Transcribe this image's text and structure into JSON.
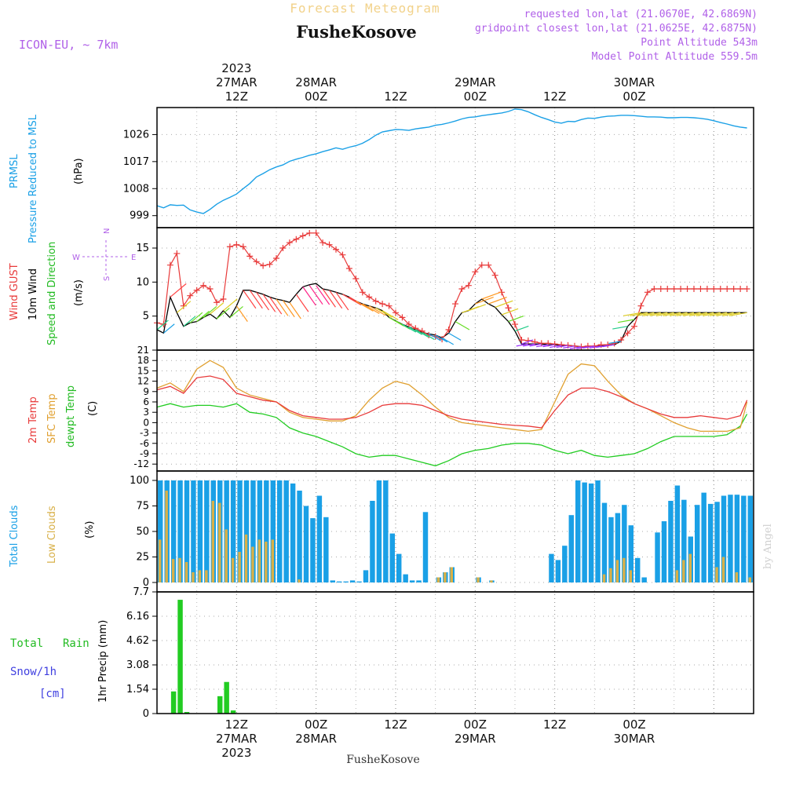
{
  "header": {
    "title": "Forecast Meteogram",
    "location": "FusheKosove",
    "model": "ICON-EU, ~ 7km",
    "requested": "requested lon,lat (21.0670E, 42.6869N)",
    "gridpoint": "gridpoint closest lon,lat (21.0625E, 42.6875N)",
    "altitude": "Point Altitude 543m",
    "model_altitude": "Model Point Altitude 559.5m",
    "footer_location": "FusheKosove",
    "credit": "by Angel"
  },
  "time_axis": {
    "top": [
      {
        "h": 12,
        "lines": [
          "2023",
          "27MAR",
          "12Z"
        ]
      },
      {
        "h": 24,
        "lines": [
          "28MAR",
          "00Z"
        ]
      },
      {
        "h": 36,
        "lines": [
          "12Z"
        ]
      },
      {
        "h": 48,
        "lines": [
          "29MAR",
          "00Z"
        ]
      },
      {
        "h": 60,
        "lines": [
          "12Z"
        ]
      },
      {
        "h": 72,
        "lines": [
          "30MAR",
          "00Z"
        ]
      }
    ],
    "bottom": [
      {
        "h": 12,
        "lines": [
          "12Z",
          "27MAR",
          "2023"
        ]
      },
      {
        "h": 24,
        "lines": [
          "00Z",
          "28MAR"
        ]
      },
      {
        "h": 36,
        "lines": [
          "12Z"
        ]
      },
      {
        "h": 48,
        "lines": [
          "00Z",
          "29MAR"
        ]
      },
      {
        "h": 60,
        "lines": [
          "12Z"
        ]
      },
      {
        "h": 72,
        "lines": [
          "00Z",
          "30MAR"
        ]
      }
    ]
  },
  "panels": {
    "pressure": {
      "labels": [
        "PRMSL",
        "Pressure Reduced to MSL",
        "(hPa)"
      ],
      "ticks": [
        "999",
        "1008",
        "1017",
        "1026"
      ],
      "line_color": "#1aa0e6"
    },
    "wind": {
      "labels": [
        "Wind GUST",
        "10m Wind",
        "Speed and Direction",
        "(m/s)"
      ],
      "compass": {
        "n": "N",
        "s": "S",
        "w": "W",
        "e": "E"
      },
      "ticks": [
        "5",
        "10",
        "15"
      ],
      "gust_color": "#e83a3a",
      "wind_color": "#000000"
    },
    "temp": {
      "labels": [
        "2m Temp",
        "SFC Temp",
        "dewpt Temp",
        "(C)"
      ],
      "ticks": [
        "-12",
        "-9",
        "-6",
        "-3",
        "0",
        "3",
        "6",
        "9",
        "12",
        "15",
        "18",
        "21"
      ],
      "t2m_color": "#e83a3a",
      "sfc_color": "#e0a030",
      "dew_color": "#22cc22"
    },
    "clouds": {
      "labels": [
        "Total Clouds",
        "Low Clouds",
        "(%)"
      ],
      "ticks": [
        "0",
        "25",
        "50",
        "75",
        "100"
      ],
      "total_color": "#1aa0e6",
      "low_color": "#d8b048"
    },
    "precip": {
      "labels": [
        "Total",
        "Rain",
        "Snow/1h",
        "[cm]",
        "1hr Precip (mm)"
      ],
      "ticks": [
        "0",
        "1.54",
        "3.08",
        "4.62",
        "6.16",
        "7.7"
      ],
      "rain_color": "#22cc22"
    }
  },
  "chart_data": {
    "type": "line",
    "x_units": "hours since 2023-03-27 00Z",
    "x_range": [
      0,
      90
    ],
    "pressure": {
      "ylim": [
        995,
        1035
      ],
      "x": [
        0,
        1,
        2,
        3,
        4,
        5,
        6,
        7,
        8,
        9,
        10,
        11,
        12,
        13,
        14,
        15,
        16,
        17,
        18,
        19,
        20,
        21,
        22,
        23,
        24,
        25,
        26,
        27,
        28,
        29,
        30,
        31,
        32,
        33,
        34,
        35,
        36,
        37,
        38,
        39,
        40,
        41,
        42,
        43,
        44,
        45,
        46,
        47,
        48,
        49,
        50,
        51,
        52,
        53,
        54,
        55,
        56,
        57,
        58,
        59,
        60,
        61,
        62,
        63,
        64,
        65,
        66,
        67,
        68,
        69,
        70,
        71,
        72,
        73,
        74,
        75,
        76,
        77,
        78,
        79,
        80,
        81,
        82,
        83,
        84,
        85,
        86,
        87,
        88,
        89
      ],
      "values": [
        1002.3,
        1001.6,
        1002.6,
        1002.4,
        1002.5,
        1000.9,
        1000.2,
        999.7,
        1001.1,
        1002.8,
        1004.1,
        1005.1,
        1006.2,
        1008.0,
        1009.7,
        1011.9,
        1013.0,
        1014.3,
        1015.2,
        1015.9,
        1017.1,
        1017.8,
        1018.4,
        1019.1,
        1019.6,
        1020.3,
        1020.9,
        1021.6,
        1021.1,
        1021.8,
        1022.3,
        1023.1,
        1024.3,
        1025.8,
        1026.9,
        1027.3,
        1027.7,
        1027.6,
        1027.4,
        1027.9,
        1028.2,
        1028.5,
        1029.1,
        1029.4,
        1029.9,
        1030.5,
        1031.2,
        1031.7,
        1031.9,
        1032.3,
        1032.6,
        1032.9,
        1033.2,
        1033.7,
        1034.5,
        1034.3,
        1033.6,
        1032.6,
        1031.7,
        1031.0,
        1030.2,
        1029.8,
        1030.4,
        1030.3,
        1031.0,
        1031.5,
        1031.4,
        1031.8,
        1032.1,
        1032.2,
        1032.4,
        1032.4,
        1032.3,
        1032.1,
        1031.9,
        1031.9,
        1031.8,
        1031.6,
        1031.6,
        1031.7,
        1031.7,
        1031.6,
        1031.4,
        1031.1,
        1030.6,
        1030.0,
        1029.5,
        1028.9,
        1028.5,
        1028.2
      ]
    },
    "wind": {
      "ylim": [
        0,
        18
      ],
      "x": [
        0,
        1,
        2,
        3,
        4,
        5,
        6,
        7,
        8,
        9,
        10,
        11,
        12,
        13,
        14,
        15,
        16,
        17,
        18,
        19,
        20,
        21,
        22,
        23,
        24,
        25,
        26,
        27,
        28,
        29,
        30,
        31,
        32,
        33,
        34,
        35,
        36,
        37,
        38,
        39,
        40,
        41,
        42,
        43,
        44,
        45,
        46,
        47,
        48,
        49,
        50,
        51,
        52,
        53,
        54,
        55,
        56,
        57,
        58,
        59,
        60,
        61,
        62,
        63,
        64,
        65,
        66,
        67,
        68,
        69,
        70,
        71,
        72,
        73,
        74,
        75,
        76,
        77,
        78,
        79,
        80,
        81,
        82,
        83,
        84,
        85,
        86,
        87,
        88,
        89
      ],
      "gust": [
        4.0,
        3.8,
        12.5,
        14.2,
        6.5,
        8.0,
        8.8,
        9.5,
        9.0,
        7.0,
        7.5,
        15.2,
        15.5,
        15.2,
        13.8,
        13.0,
        12.4,
        12.6,
        13.5,
        15.0,
        15.8,
        16.3,
        16.8,
        17.2,
        17.2,
        15.8,
        15.5,
        14.8,
        14.0,
        12.0,
        10.5,
        8.5,
        7.8,
        7.2,
        6.8,
        6.5,
        5.5,
        4.8,
        3.8,
        3.2,
        2.8,
        2.2,
        2.0,
        1.6,
        3.0,
        6.8,
        9.0,
        9.5,
        11.5,
        12.5,
        12.5,
        11.0,
        8.5,
        6.2,
        3.8,
        1.5,
        1.4,
        1.2,
        1.0,
        1.0,
        0.9,
        0.8,
        0.7,
        0.6,
        0.5,
        0.6,
        0.6,
        0.8,
        0.8,
        1.0,
        1.5,
        2.5,
        3.5,
        6.5,
        8.5,
        9.0,
        9.0,
        9.0,
        9.0,
        9.0,
        9.0,
        9.0,
        9.0,
        9.0,
        9.0,
        9.0,
        9.0,
        9.0,
        9.0,
        9.0
      ],
      "wind": [
        3.0,
        2.5,
        7.8,
        5.5,
        3.5,
        4.0,
        4.2,
        4.8,
        5.3,
        4.6,
        5.8,
        4.8,
        6.5,
        8.8,
        8.8,
        8.5,
        8.2,
        7.8,
        7.5,
        7.3,
        7.0,
        8.2,
        9.3,
        9.6,
        9.8,
        9.0,
        8.8,
        8.5,
        8.2,
        7.8,
        7.2,
        6.8,
        6.5,
        6.2,
        5.8,
        4.8,
        4.3,
        3.8,
        3.4,
        3.0,
        2.6,
        2.4,
        2.2,
        1.8,
        2.5,
        4.2,
        5.5,
        5.8,
        6.8,
        7.5,
        6.8,
        6.3,
        5.2,
        4.2,
        2.8,
        0.9,
        0.9,
        0.9,
        0.9,
        0.8,
        0.8,
        0.7,
        0.7,
        0.6,
        0.5,
        0.5,
        0.6,
        0.6,
        0.7,
        0.8,
        1.3,
        3.5,
        4.5,
        5.5,
        5.5,
        5.5,
        5.5,
        5.5,
        5.5,
        5.5,
        5.5,
        5.5,
        5.5,
        5.5,
        5.5,
        5.5,
        5.5,
        5.5,
        5.5,
        5.5
      ]
    },
    "temperature": {
      "ylim": [
        -14,
        21
      ],
      "x": [
        0,
        2,
        4,
        6,
        8,
        10,
        12,
        14,
        16,
        18,
        20,
        22,
        24,
        26,
        28,
        30,
        32,
        34,
        36,
        38,
        40,
        42,
        44,
        46,
        48,
        50,
        52,
        54,
        56,
        58,
        60,
        62,
        64,
        66,
        68,
        70,
        72,
        74,
        76,
        78,
        80,
        82,
        84,
        86,
        88,
        89
      ],
      "t2m": [
        9.5,
        10.5,
        8.5,
        13.0,
        13.5,
        12.5,
        8.5,
        7.5,
        6.5,
        6.0,
        3.5,
        2.0,
        1.5,
        1.0,
        1.0,
        1.5,
        3.0,
        5.0,
        5.5,
        5.5,
        5.0,
        3.5,
        2.0,
        1.0,
        0.5,
        0.0,
        -0.5,
        -0.8,
        -1.0,
        -1.5,
        3.5,
        8.0,
        10.0,
        10.0,
        9.0,
        7.5,
        5.5,
        4.0,
        2.5,
        1.5,
        1.5,
        2.0,
        1.5,
        1.0,
        2.0,
        6.5
      ],
      "sfc": [
        10.0,
        11.5,
        9.0,
        15.5,
        18.0,
        16.0,
        10.0,
        8.0,
        7.0,
        6.0,
        3.0,
        1.5,
        1.0,
        0.5,
        0.5,
        2.0,
        6.5,
        10.0,
        12.0,
        11.0,
        8.0,
        4.5,
        1.5,
        0.0,
        -0.5,
        -1.0,
        -1.5,
        -2.0,
        -2.5,
        -2.0,
        6.0,
        14.0,
        17.0,
        16.5,
        12.0,
        8.0,
        5.5,
        4.0,
        2.0,
        0.0,
        -1.5,
        -2.5,
        -2.5,
        -2.5,
        -1.5,
        6.0
      ],
      "dewpt": [
        4.5,
        5.5,
        4.5,
        5.0,
        5.0,
        4.5,
        5.5,
        3.0,
        2.5,
        1.5,
        -1.5,
        -3.0,
        -4.0,
        -5.5,
        -7.0,
        -9.0,
        -10.0,
        -9.5,
        -9.5,
        -10.5,
        -11.5,
        -12.5,
        -11.0,
        -9.0,
        -8.0,
        -7.5,
        -6.5,
        -6.0,
        -6.0,
        -6.5,
        -8.0,
        -9.0,
        -8.0,
        -9.5,
        -10.0,
        -9.5,
        -9.0,
        -7.5,
        -5.5,
        -4.0,
        -4.0,
        -4.0,
        -4.0,
        -3.5,
        -1.0,
        2.5
      ]
    },
    "clouds": {
      "ylim": [
        0,
        100
      ],
      "x": [
        0,
        1,
        2,
        3,
        4,
        5,
        6,
        7,
        8,
        9,
        10,
        11,
        12,
        13,
        14,
        15,
        16,
        17,
        18,
        19,
        20,
        21,
        22,
        23,
        24,
        25,
        26,
        27,
        28,
        29,
        30,
        31,
        32,
        33,
        34,
        35,
        36,
        37,
        38,
        39,
        40,
        41,
        42,
        43,
        44,
        45,
        46,
        47,
        48,
        49,
        50,
        51,
        52,
        53,
        54,
        55,
        56,
        57,
        58,
        59,
        60,
        61,
        62,
        63,
        64,
        65,
        66,
        67,
        68,
        69,
        70,
        71,
        72,
        73,
        74,
        75,
        76,
        77,
        78,
        79,
        80,
        81,
        82,
        83,
        84,
        85,
        86,
        87,
        88,
        89
      ],
      "total": [
        100,
        100,
        100,
        100,
        100,
        100,
        100,
        100,
        100,
        100,
        100,
        100,
        100,
        100,
        100,
        100,
        100,
        100,
        100,
        100,
        97,
        90,
        75,
        63,
        85,
        64,
        2,
        1,
        1,
        2,
        1,
        12,
        80,
        100,
        100,
        48,
        28,
        8,
        2,
        2,
        69,
        0,
        5,
        10,
        15,
        0,
        0,
        0,
        5,
        0,
        2,
        0,
        0,
        0,
        0,
        0,
        0,
        0,
        0,
        28,
        22,
        36,
        66,
        100,
        98,
        97,
        100,
        78,
        64,
        68,
        76,
        56,
        24,
        5,
        0,
        49,
        60,
        80,
        95,
        81,
        45,
        76,
        88,
        77,
        79,
        85,
        86,
        86,
        85,
        85
      ],
      "low": [
        42,
        90,
        23,
        24,
        20,
        10,
        12,
        12,
        80,
        78,
        52,
        24,
        30,
        47,
        35,
        42,
        40,
        42,
        0,
        0,
        0,
        3,
        0,
        0,
        0,
        0,
        0,
        0,
        0,
        0,
        0,
        0,
        0,
        0,
        0,
        0,
        0,
        0,
        0,
        0,
        0,
        0,
        5,
        10,
        15,
        0,
        0,
        0,
        5,
        0,
        2,
        0,
        0,
        0,
        0,
        0,
        0,
        0,
        0,
        0,
        0,
        0,
        0,
        0,
        0,
        0,
        0,
        8,
        14,
        22,
        24,
        12,
        0,
        0,
        0,
        0,
        0,
        0,
        12,
        22,
        28,
        0,
        0,
        0,
        15,
        25,
        0,
        10,
        0,
        5
      ]
    },
    "precip": {
      "ylim": [
        0,
        7.7
      ],
      "x": [
        2,
        3,
        4,
        9,
        10,
        11
      ],
      "rain": [
        1.4,
        7.2,
        0.1,
        1.1,
        2.0,
        0.2
      ]
    }
  }
}
